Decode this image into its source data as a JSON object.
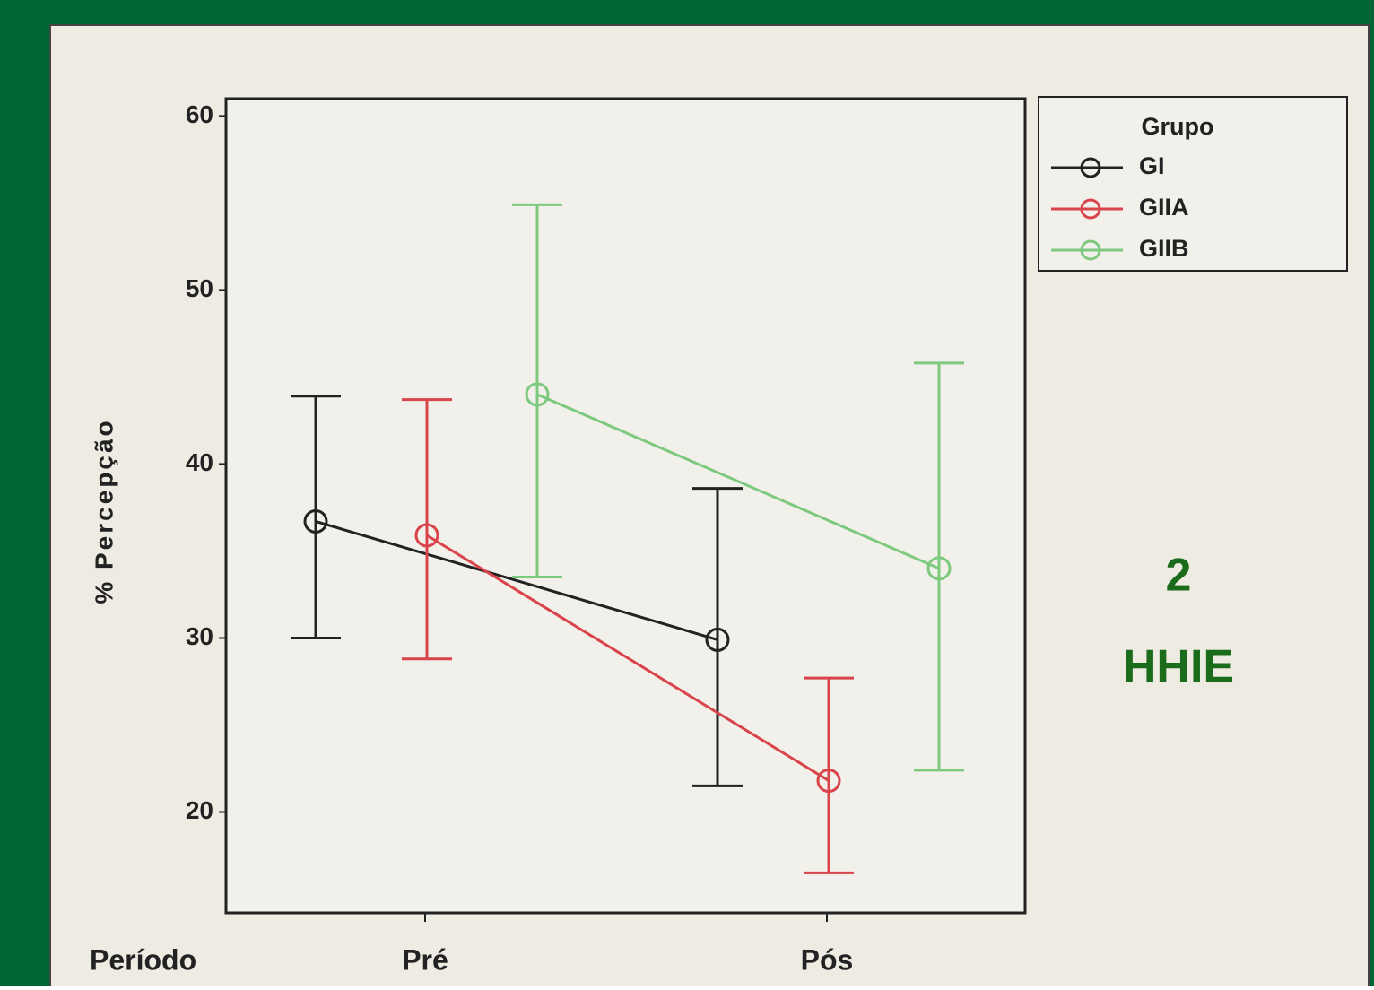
{
  "chart_data": {
    "type": "errorbar-line",
    "y_label": "% Percepção",
    "x_label": "Período",
    "categories": [
      "Pré",
      "Pós"
    ],
    "series": [
      {
        "name": "GI",
        "color": "#222222",
        "values": [
          36.7,
          29.9
        ],
        "ci_low": [
          30.0,
          21.5
        ],
        "ci_high": [
          43.9,
          38.6
        ]
      },
      {
        "name": "GIIA",
        "color": "#d9434a",
        "values": [
          35.9,
          21.8
        ],
        "ci_low": [
          28.8,
          16.5
        ],
        "ci_high": [
          43.7,
          27.7
        ]
      },
      {
        "name": "GIIB",
        "color": "#7dc97d",
        "values": [
          44.0,
          34.0
        ],
        "ci_low": [
          33.5,
          22.4
        ],
        "ci_high": [
          54.9,
          45.8
        ]
      }
    ],
    "ylim": [
      14.2,
      61
    ],
    "yticks": [
      20,
      30,
      40,
      50,
      60
    ],
    "legend_title": "Grupo",
    "legend": "upper right outside",
    "annotations": [
      "2",
      "HHIE"
    ]
  }
}
